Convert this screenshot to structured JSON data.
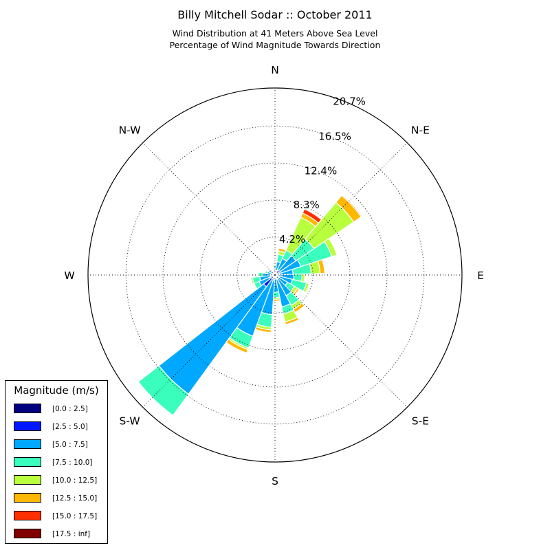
{
  "chart_data": {
    "type": "windrose",
    "title": "Billy Mitchell Sodar :: October 2011",
    "subtitle_lines": [
      "Wind Distribution at 41 Meters Above Sea Level",
      "Percentage of Wind Magnitude Towards Direction"
    ],
    "directions": {
      "labels": [
        "N",
        "N-E",
        "E",
        "S-E",
        "S",
        "S-W",
        "W",
        "N-W"
      ],
      "label_bearings": [
        0,
        45,
        90,
        135,
        180,
        225,
        270,
        315
      ]
    },
    "radial_axis": {
      "tick_values": [
        4.2,
        8.3,
        12.4,
        16.5,
        20.7
      ],
      "tick_labels": [
        "4.2%",
        "8.3%",
        "12.4%",
        "16.5%",
        "20.7%"
      ],
      "max": 20.7,
      "grid": true
    },
    "legend": {
      "title": "Magnitude (m/s)",
      "placement": "lower-left",
      "entries": [
        {
          "label": "[0.0 : 2.5]",
          "color": "#000080"
        },
        {
          "label": "[2.5 : 5.0]",
          "color": "#0018ff"
        },
        {
          "label": "[5.0 : 7.5]",
          "color": "#00a8ff"
        },
        {
          "label": "[7.5 : 10.0]",
          "color": "#3affbc"
        },
        {
          "label": "[10.0 : 12.5]",
          "color": "#b8ff3e"
        },
        {
          "label": "[12.5 : 15.0]",
          "color": "#ffb800"
        },
        {
          "label": "[15.0 : 17.5]",
          "color": "#ff3000"
        },
        {
          "label": "[17.5 : inf]",
          "color": "#800000"
        }
      ]
    },
    "sector_width_degrees": 16,
    "bins": [
      {
        "direction": 0,
        "cumulative": [
          0.15,
          0.4,
          0.9,
          1.1,
          1.2,
          1.25
        ]
      },
      {
        "direction": 16,
        "cumulative": [
          0.2,
          0.5,
          1.5,
          2.3,
          2.7,
          3.0,
          3.05
        ]
      },
      {
        "direction": 32,
        "cumulative": [
          0.2,
          0.6,
          2.0,
          3.0,
          7.0,
          7.5,
          8.0
        ]
      },
      {
        "direction": 48,
        "cumulative": [
          0.2,
          0.7,
          2.8,
          5.2,
          10.5,
          11.5,
          11.6
        ]
      },
      {
        "direction": 64,
        "cumulative": [
          0.2,
          0.6,
          3.0,
          6.6,
          7.2
        ]
      },
      {
        "direction": 80,
        "cumulative": [
          0.2,
          0.5,
          2.0,
          4.0,
          5.0,
          5.5
        ]
      },
      {
        "direction": 96,
        "cumulative": [
          0.3,
          0.6,
          2.1,
          3.0,
          3.3,
          3.4
        ]
      },
      {
        "direction": 112,
        "cumulative": [
          0.2,
          0.5,
          2.0,
          3.6,
          3.9
        ]
      },
      {
        "direction": 128,
        "cumulative": [
          0.15,
          0.4,
          1.6,
          2.5,
          2.9,
          3.1
        ]
      },
      {
        "direction": 144,
        "cumulative": [
          0.15,
          0.5,
          2.6,
          3.8,
          4.3,
          4.7
        ]
      },
      {
        "direction": 160,
        "cumulative": [
          0.15,
          0.5,
          3.6,
          4.4,
          5.3,
          5.6
        ]
      },
      {
        "direction": 176,
        "cumulative": [
          0.1,
          0.4,
          1.9,
          2.5,
          2.7,
          2.9
        ]
      },
      {
        "direction": 192,
        "cumulative": [
          0.2,
          0.6,
          4.4,
          5.8,
          6.1,
          6.4
        ]
      },
      {
        "direction": 208,
        "cumulative": [
          0.15,
          0.5,
          7.2,
          8.6,
          8.8,
          9.2
        ]
      },
      {
        "direction": 224,
        "cumulative": [
          0.3,
          1.6,
          16.3,
          19.2
        ]
      },
      {
        "direction": 240,
        "cumulative": [
          0.2,
          0.6,
          1.9,
          2.5,
          2.6
        ]
      },
      {
        "direction": 256,
        "cumulative": [
          0.15,
          0.5,
          1.7,
          2.5,
          2.7
        ]
      },
      {
        "direction": 272,
        "cumulative": [
          0.15,
          0.5,
          1.3,
          1.8,
          1.9
        ]
      },
      {
        "direction": 288,
        "cumulative": [
          0.1,
          0.3,
          0.9,
          1.1,
          1.2
        ]
      },
      {
        "direction": 304,
        "cumulative": [
          0.1,
          0.3,
          0.8,
          0.9,
          1.0
        ]
      },
      {
        "direction": 320,
        "cumulative": [
          0.05,
          0.2,
          0.4,
          0.5
        ]
      },
      {
        "direction": 336,
        "cumulative": [
          0.05,
          0.15,
          0.3,
          0.35
        ]
      },
      {
        "direction": 352,
        "cumulative": [
          0.1,
          0.3,
          0.6,
          0.7
        ]
      }
    ]
  }
}
